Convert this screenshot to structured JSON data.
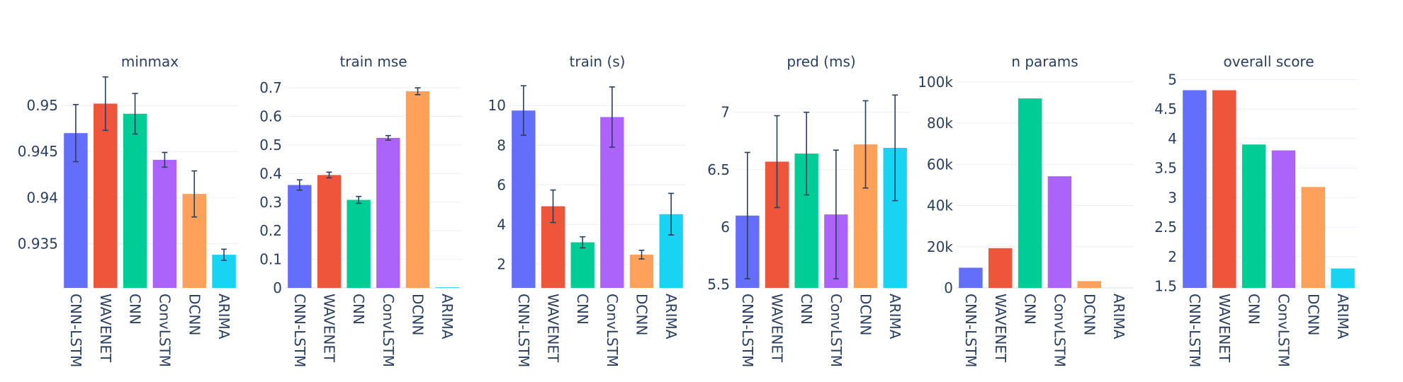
{
  "chart_data": [
    {
      "type": "bar",
      "title": "minmax",
      "categories": [
        "CNN-LSTM",
        "WAVENET",
        "CNN",
        "ConvLSTM",
        "DCNN",
        "ARIMA"
      ],
      "values": [
        0.947,
        0.9502,
        0.9491,
        0.9441,
        0.9404,
        0.9338
      ],
      "errors": [
        0.0031,
        0.0029,
        0.0022,
        0.0008,
        0.0025,
        0.0006
      ],
      "ylim": [
        0.9302,
        0.953
      ],
      "yticks": [
        0.935,
        0.94,
        0.945,
        0.95
      ],
      "ytick_labels": [
        "0.935",
        "0.94",
        "0.945",
        "0.95"
      ]
    },
    {
      "type": "bar",
      "title": "train mse",
      "categories": [
        "CNN-LSTM",
        "WAVENET",
        "CNN",
        "ConvLSTM",
        "DCNN",
        "ARIMA"
      ],
      "values": [
        0.36,
        0.395,
        0.308,
        0.525,
        0.688,
        0.002
      ],
      "errors": [
        0.018,
        0.01,
        0.012,
        0.008,
        0.012,
        0
      ],
      "ylim": [
        0,
        0.735
      ],
      "yticks": [
        0,
        0.1,
        0.2,
        0.3,
        0.4,
        0.5,
        0.6,
        0.7
      ],
      "ytick_labels": [
        "0",
        "0.1",
        "0.2",
        "0.3",
        "0.4",
        "0.5",
        "0.6",
        "0.7"
      ]
    },
    {
      "type": "bar",
      "title": "train (s)",
      "categories": [
        "CNN-LSTM",
        "WAVENET",
        "CNN",
        "ConvLSTM",
        "DCNN",
        "ARIMA"
      ],
      "values": [
        9.75,
        4.92,
        3.1,
        9.42,
        2.48,
        4.52
      ],
      "errors": [
        1.25,
        0.82,
        0.28,
        1.52,
        0.22,
        1.05
      ],
      "ylim": [
        0.8,
        11.4
      ],
      "yticks": [
        2,
        4,
        6,
        8,
        10
      ],
      "ytick_labels": [
        "2",
        "4",
        "6",
        "8",
        "10"
      ]
    },
    {
      "type": "bar",
      "title": "pred (ms)",
      "categories": [
        "CNN-LSTM",
        "WAVENET",
        "CNN",
        "ConvLSTM",
        "DCNN",
        "ARIMA"
      ],
      "values": [
        6.1,
        6.57,
        6.64,
        6.11,
        6.72,
        6.69
      ],
      "errors": [
        0.55,
        0.4,
        0.36,
        0.56,
        0.38,
        0.46
      ],
      "ylim": [
        5.47,
        7.3
      ],
      "yticks": [
        5.5,
        6,
        6.5,
        7
      ],
      "ytick_labels": [
        "5.5",
        "6",
        "6.5",
        "7"
      ]
    },
    {
      "type": "bar",
      "title": "n params",
      "categories": [
        "CNN-LSTM",
        "WAVENET",
        "CNN",
        "ConvLSTM",
        "DCNN",
        "ARIMA"
      ],
      "values": [
        9800,
        19300,
        92000,
        54200,
        3300,
        0
      ],
      "ylim": [
        0,
        102000
      ],
      "yticks": [
        0,
        20000,
        40000,
        60000,
        80000,
        100000
      ],
      "ytick_labels": [
        "0",
        "20k",
        "40k",
        "60k",
        "80k",
        "100k"
      ]
    },
    {
      "type": "bar",
      "title": "overall score",
      "categories": [
        "CNN-LSTM",
        "WAVENET",
        "CNN",
        "ConvLSTM",
        "DCNN",
        "ARIMA"
      ],
      "values": [
        4.82,
        4.82,
        3.9,
        3.8,
        3.18,
        1.8
      ],
      "ylim": [
        1.47,
        5.03
      ],
      "yticks": [
        1.5,
        2,
        2.5,
        3,
        3.5,
        4,
        4.5,
        5
      ],
      "ytick_labels": [
        "1.5",
        "2",
        "2.5",
        "3",
        "3.5",
        "4",
        "4.5",
        "5"
      ]
    }
  ],
  "colors": [
    "#636efa",
    "#ef553b",
    "#00cc96",
    "#ab63fa",
    "#ffa15a",
    "#19d3f3"
  ],
  "legend": "none"
}
